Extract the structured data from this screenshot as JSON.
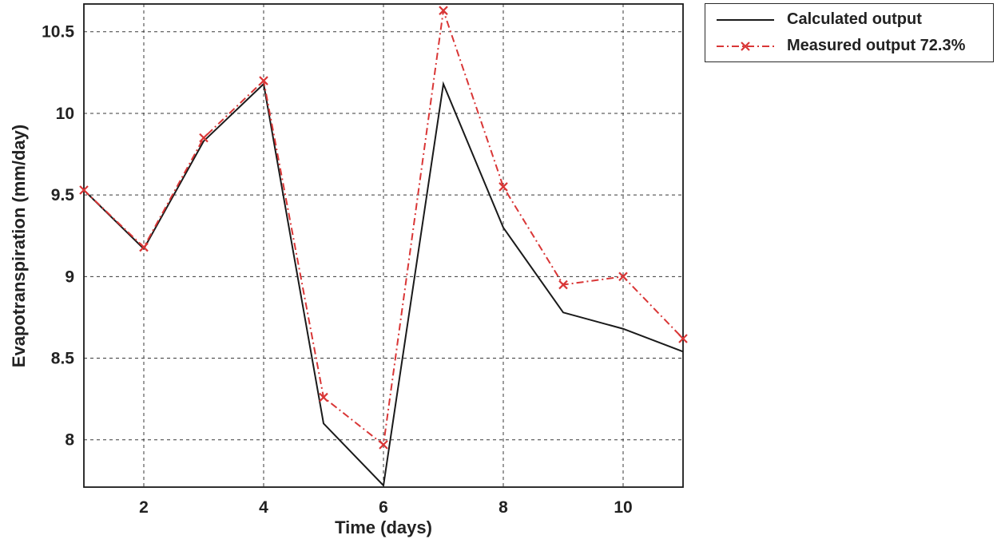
{
  "chart_data": {
    "type": "line",
    "title": "",
    "xlabel": "Time (days)",
    "ylabel": "Evapotranspiration (mm/day)",
    "x": [
      1,
      2,
      3,
      4,
      5,
      6,
      7,
      8,
      9,
      10,
      11
    ],
    "series": [
      {
        "name": "Calculated output",
        "color": "#1a1a1a",
        "style": "solid",
        "marker": "none",
        "values": [
          9.53,
          9.17,
          9.83,
          10.18,
          8.1,
          7.72,
          10.18,
          9.3,
          8.78,
          8.68,
          8.54
        ]
      },
      {
        "name": "Measured output 72.3%",
        "color": "#d93636",
        "style": "dash-dot",
        "marker": "x",
        "values": [
          9.53,
          9.18,
          9.85,
          10.2,
          8.26,
          7.97,
          10.63,
          9.55,
          8.95,
          9.0,
          8.62
        ]
      }
    ],
    "xlim": [
      1,
      11
    ],
    "ylim": [
      7.71,
      10.67
    ],
    "xticks": [
      2,
      4,
      6,
      8,
      10
    ],
    "yticks": [
      8,
      8.5,
      9,
      9.5,
      10,
      10.5
    ],
    "grid": true,
    "grid_style": "dashed",
    "legend_position": "top-right-outside"
  }
}
